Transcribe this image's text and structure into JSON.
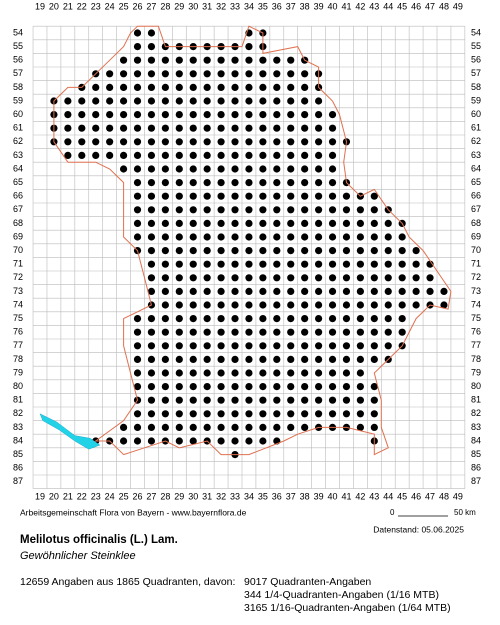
{
  "grid": {
    "columns": [
      19,
      20,
      21,
      22,
      23,
      24,
      25,
      26,
      27,
      28,
      29,
      30,
      31,
      32,
      33,
      34,
      35,
      36,
      37,
      38,
      39,
      40,
      41,
      42,
      43,
      44,
      45,
      46,
      47,
      48,
      49
    ],
    "rows": [
      54,
      55,
      56,
      57,
      58,
      59,
      60,
      61,
      62,
      63,
      64,
      65,
      66,
      67,
      68,
      69,
      70,
      71,
      72,
      73,
      74,
      75,
      76,
      77,
      78,
      79,
      80,
      81,
      82,
      83,
      84,
      85,
      86,
      87
    ]
  },
  "scale": {
    "start": "0",
    "end": "50 km"
  },
  "credit": "Arbeitsgemeinschaft Flora von Bayern - www.bayernflora.de",
  "date": "Datenstand: 05.06.2025",
  "species": {
    "name": "Melilotus officinalis (L.) Lam.",
    "common_name": "Gewöhnlicher Steinklee"
  },
  "stats": {
    "summary": "12659 Angaben aus 1865 Quadranten, davon:",
    "lines": [
      "9017 Quadranten-Angaben",
      "344 1/4-Quadranten-Angaben (1/16 MTB)",
      "3165 1/16-Quadranten-Angaben (1/64 MTB)"
    ]
  }
}
